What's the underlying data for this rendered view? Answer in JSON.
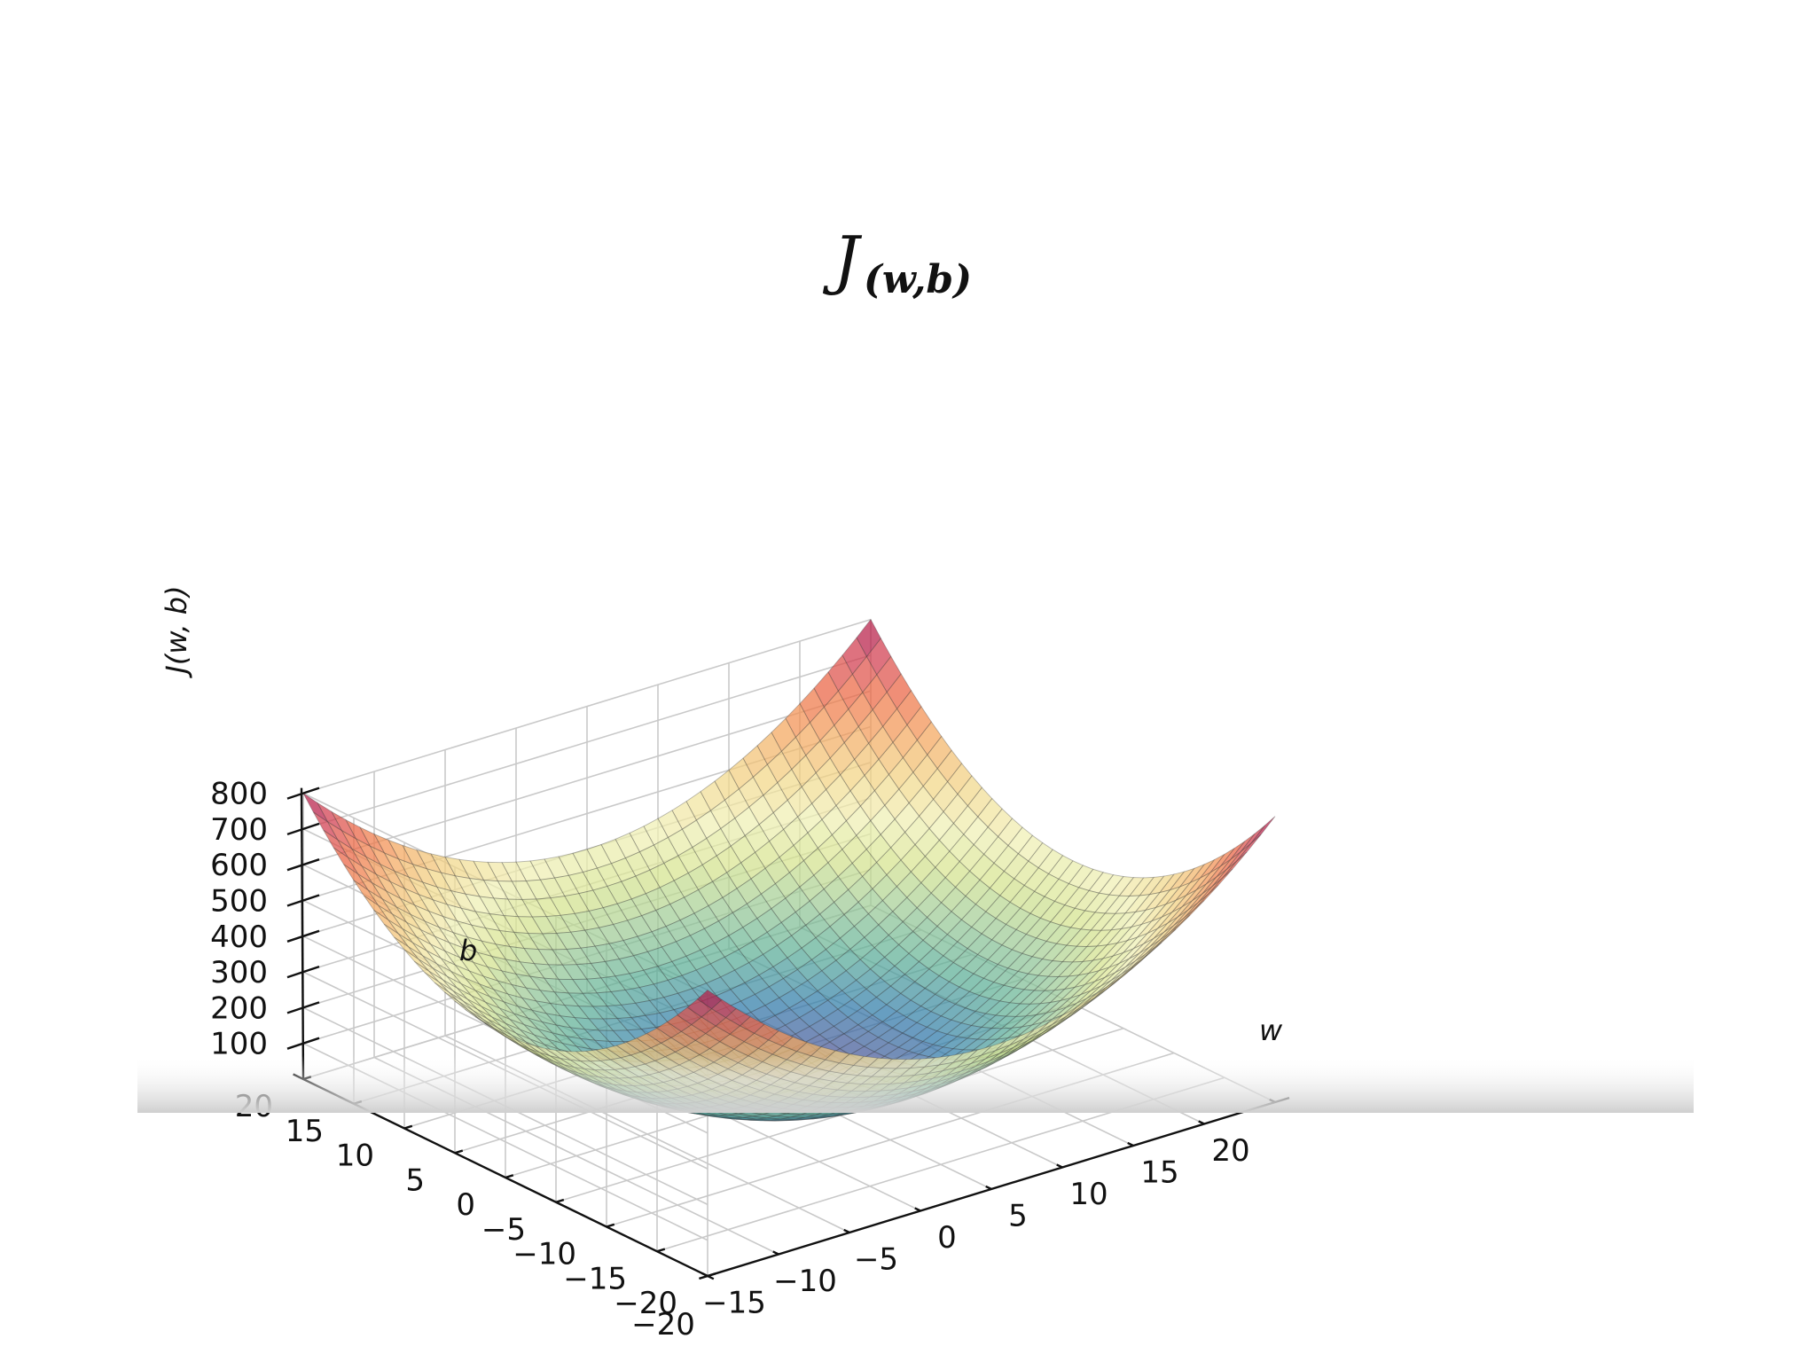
{
  "chart_data": {
    "type": "surface",
    "title": {
      "main": "J",
      "sub": "(w,b)"
    },
    "function": "J(w,b) = w^2 + b^2",
    "colormap": "Spectral_r",
    "x": {
      "label": "w",
      "ticks": [
        -20,
        -15,
        -10,
        -5,
        0,
        5,
        10,
        15,
        20
      ],
      "tick_labels": [
        "−20",
        "−15",
        "−10",
        "−5",
        "0",
        "5",
        "10",
        "15",
        "20"
      ],
      "range": [
        -20,
        20
      ]
    },
    "y": {
      "label": "b",
      "ticks": [
        -20,
        -15,
        -10,
        -5,
        0,
        5,
        10,
        15,
        20
      ],
      "tick_labels": [
        "−20",
        "−15",
        "−10",
        "−5",
        "0",
        "5",
        "10",
        "15",
        "20"
      ],
      "range": [
        -20,
        20
      ]
    },
    "z": {
      "label": "J(w, b)",
      "ticks": [
        100,
        200,
        300,
        400,
        500,
        600,
        700,
        800
      ],
      "tick_labels": [
        "100",
        "200",
        "300",
        "400",
        "500",
        "600",
        "700",
        "800"
      ],
      "range": [
        0,
        800
      ]
    },
    "corner_values": [
      {
        "w": -20,
        "b": -20,
        "J": 800
      },
      {
        "w": 20,
        "b": -20,
        "J": 800
      },
      {
        "w": -20,
        "b": 20,
        "J": 800
      },
      {
        "w": 20,
        "b": 20,
        "J": 800
      }
    ],
    "minimum": {
      "w": 0,
      "b": 0,
      "J": 0
    },
    "grid": true
  }
}
